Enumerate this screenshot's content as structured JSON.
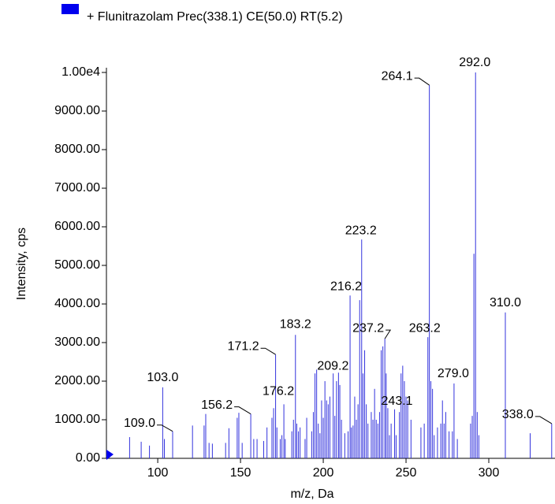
{
  "chart_data": {
    "type": "stick",
    "legend": "+ Flunitrazolam Prec(338.1) CE(50.0) RT(5.2)",
    "color": "#3333dd",
    "legend_color": "#0000ee",
    "x_label": "m/z, Da",
    "y_label": "Intensity, cps",
    "xlim": [
      69,
      340
    ],
    "xticks": [
      100,
      150,
      200,
      250,
      300
    ],
    "ylim": [
      0,
      10000
    ],
    "yticks": [
      {
        "value": 0,
        "label": "0.00"
      },
      {
        "value": 1000,
        "label": "1000.00"
      },
      {
        "value": 2000,
        "label": "2000.00"
      },
      {
        "value": 3000,
        "label": "3000.00"
      },
      {
        "value": 4000,
        "label": "4000.00"
      },
      {
        "value": 5000,
        "label": "5000.00"
      },
      {
        "value": 6000,
        "label": "6000.00"
      },
      {
        "value": 7000,
        "label": "7000.00"
      },
      {
        "value": 8000,
        "label": "8000.00"
      },
      {
        "value": 9000,
        "label": "9000.00"
      },
      {
        "value": 10000,
        "label": "1.00e4"
      }
    ],
    "x": [
      83,
      90,
      95,
      103.0,
      104,
      109.0,
      121,
      128,
      129,
      131,
      133,
      141,
      143,
      148,
      149,
      151,
      156.2,
      158,
      160,
      164,
      166,
      169,
      170,
      171.2,
      172,
      174,
      175,
      176.2,
      177,
      181,
      182,
      183.2,
      184,
      185,
      186,
      189,
      190,
      193,
      194,
      195,
      196,
      197,
      198,
      199,
      200,
      201,
      202,
      203,
      204,
      206,
      207,
      208,
      209.2,
      210,
      211,
      213,
      215,
      216.2,
      217,
      218,
      219,
      220,
      221,
      222,
      223.2,
      224,
      225,
      226,
      227,
      229,
      230,
      231,
      232,
      233,
      234,
      235,
      236,
      237.2,
      238,
      239,
      240,
      241,
      243.1,
      244,
      246,
      247,
      248,
      249,
      250,
      251,
      253,
      259,
      261,
      263.2,
      264.1,
      265,
      266,
      267,
      269,
      271,
      272,
      273,
      274,
      276,
      278,
      279.0,
      281,
      289,
      290,
      291,
      292.0,
      293,
      294,
      310.0,
      325,
      338.0
    ],
    "values": [
      550,
      430,
      330,
      1840,
      500,
      700,
      850,
      850,
      1150,
      400,
      380,
      400,
      780,
      1050,
      1180,
      400,
      1150,
      500,
      500,
      450,
      800,
      1050,
      1300,
      2690,
      800,
      500,
      600,
      1400,
      500,
      700,
      1000,
      3200,
      900,
      700,
      800,
      500,
      1050,
      700,
      1200,
      2200,
      2300,
      900,
      650,
      1500,
      1050,
      2000,
      1500,
      1400,
      1600,
      2200,
      1100,
      2000,
      2220,
      1900,
      1000,
      650,
      700,
      4220,
      800,
      850,
      1600,
      1000,
      1400,
      4100,
      5670,
      2200,
      2800,
      1400,
      900,
      1200,
      1000,
      1800,
      1000,
      900,
      1200,
      2800,
      2900,
      3100,
      2200,
      1300,
      600,
      900,
      1270,
      600,
      1200,
      2200,
      2400,
      2000,
      1600,
      1500,
      1000,
      800,
      900,
      3140,
      9670,
      2000,
      1800,
      600,
      800,
      900,
      1500,
      900,
      1200,
      700,
      700,
      1940,
      500,
      900,
      1100,
      5300,
      10000,
      1200,
      600,
      3780,
      650,
      900
    ],
    "annotations": [
      {
        "value": 109.0,
        "label": "109.0"
      },
      {
        "value": 103.0,
        "label": "103.0"
      },
      {
        "value": 156.2,
        "label": "156.2"
      },
      {
        "value": 171.2,
        "label": "171.2"
      },
      {
        "value": 176.2,
        "label": "176.2"
      },
      {
        "value": 183.2,
        "label": "183.2"
      },
      {
        "value": 209.2,
        "label": "209.2"
      },
      {
        "value": 216.2,
        "label": "216.2"
      },
      {
        "value": 223.2,
        "label": "223.2"
      },
      {
        "value": 237.2,
        "label": "237.2"
      },
      {
        "value": 243.1,
        "label": "243.1"
      },
      {
        "value": 263.2,
        "label": "263.2"
      },
      {
        "value": 264.1,
        "label": "264.1"
      },
      {
        "value": 279.0,
        "label": "279.0"
      },
      {
        "value": 292.0,
        "label": "292.0"
      },
      {
        "value": 310.0,
        "label": "310.0"
      },
      {
        "value": 338.0,
        "label": "338.0"
      }
    ]
  }
}
